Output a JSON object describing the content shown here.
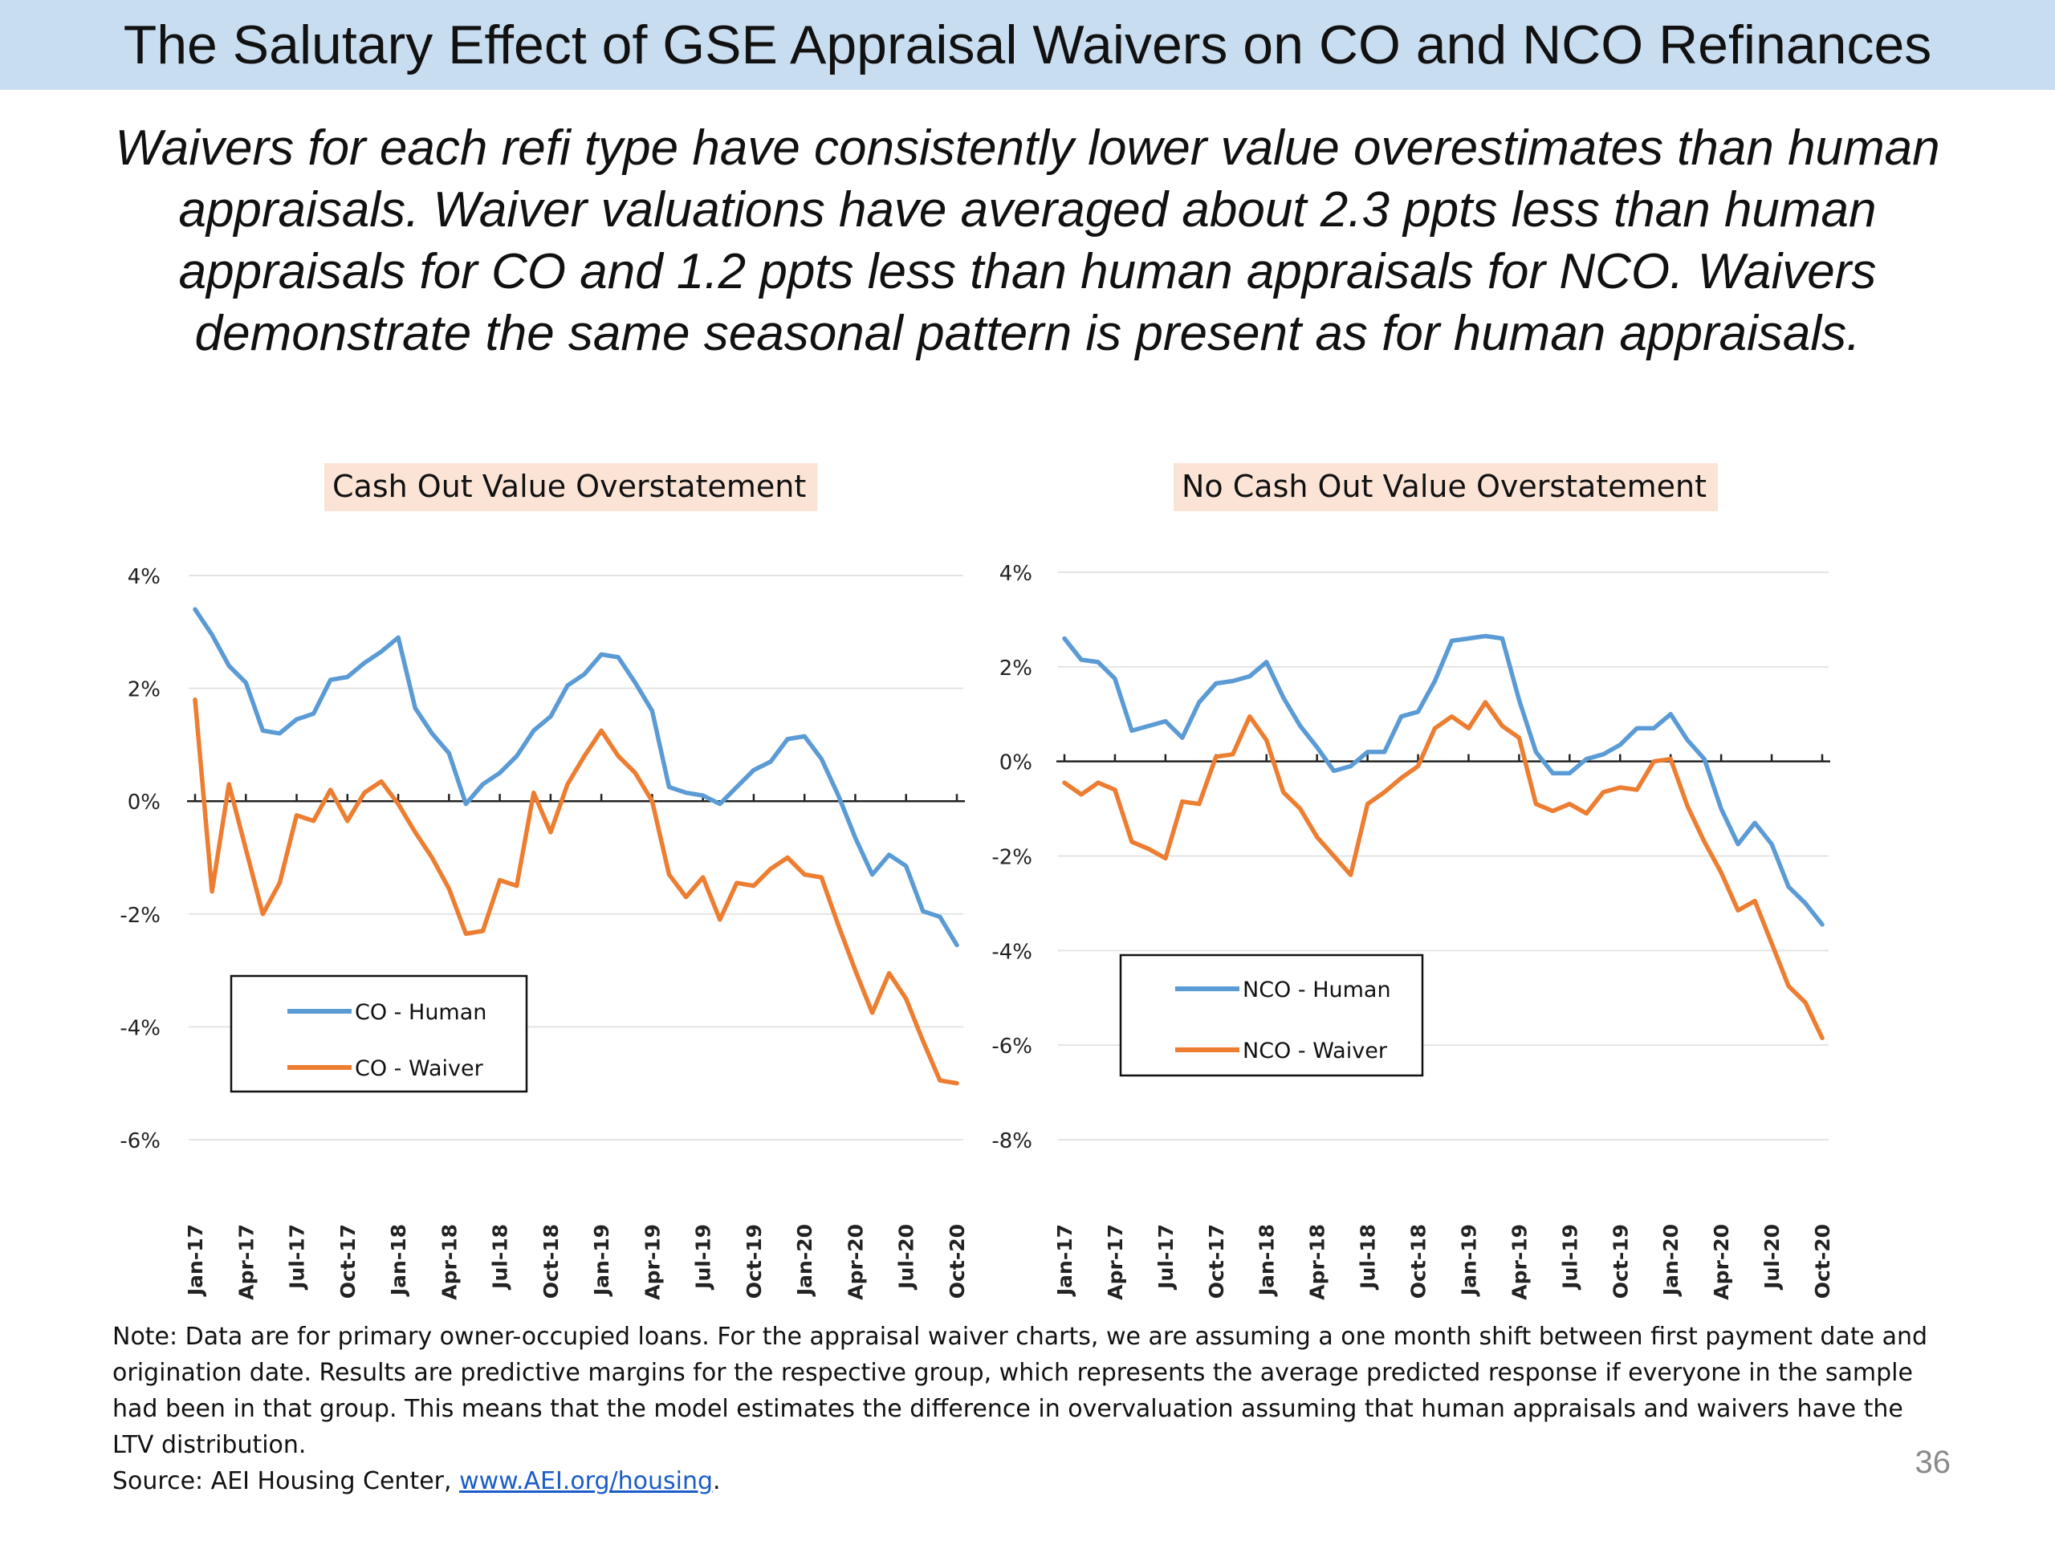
{
  "slide": {
    "title": "The Salutary Effect of GSE Appraisal Waivers on CO and NCO Refinances",
    "subtitle": "Waivers for each refi type have consistently lower value overestimates than human appraisals. Waiver valuations have averaged about 2.3 ppts less than human appraisals for CO and 1.2 ppts less  than human appraisals for NCO. Waivers demonstrate the same seasonal pattern is present as for human appraisals.",
    "note_text": "Note: Data are for primary owner-occupied loans. For the appraisal waiver charts, we are assuming a one month shift between first payment date and origination date. Results are predictive margins for the respective group, which represents the average predicted response if everyone in the sample had been in that group. This means that the model estimates the difference in overvaluation assuming that human appraisals and waivers have the LTV distribution.",
    "source_prefix": "Source: AEI Housing Center, ",
    "source_link": "www.AEI.org/housing",
    "source_suffix": ".",
    "page_number": "36"
  },
  "colors": {
    "title_bar": "#c9ddf0",
    "chart_title_bg": "#fbe4d6",
    "human": "#5b9bd5",
    "waiver": "#ed7d31",
    "link": "#1a5cc8"
  },
  "chart_data": [
    {
      "type": "line",
      "title": "Cash Out Value Overstatement",
      "xlabel": "",
      "ylabel": "",
      "y_unit": "%",
      "ylim": [
        -6,
        4
      ],
      "yticks": [
        -6,
        -4,
        -2,
        0,
        2,
        4
      ],
      "ytick_labels": [
        "-6%",
        "-4%",
        "-2%",
        "0%",
        "2%",
        "4%"
      ],
      "grid": true,
      "legend": "lower-left",
      "x_labels": [
        "Jan-17",
        "Apr-17",
        "Jul-17",
        "Oct-17",
        "Jan-18",
        "Apr-18",
        "Jul-18",
        "Oct-18",
        "Jan-19",
        "Apr-19",
        "Jul-19",
        "Oct-19",
        "Jan-20",
        "Apr-20",
        "Jul-20",
        "Oct-20"
      ],
      "x_label_step": 3,
      "n_points": 46,
      "series": [
        {
          "name": "CO - Human",
          "color": "#5b9bd5",
          "values": [
            3.4,
            2.95,
            2.4,
            2.1,
            1.25,
            1.2,
            1.45,
            1.55,
            2.15,
            2.2,
            2.45,
            2.65,
            2.9,
            1.65,
            1.2,
            0.85,
            -0.05,
            0.3,
            0.5,
            0.8,
            1.25,
            1.5,
            2.05,
            2.25,
            2.6,
            2.55,
            2.1,
            1.6,
            0.25,
            0.15,
            0.1,
            -0.05,
            0.25,
            0.55,
            0.7,
            1.1,
            1.15,
            0.75,
            0.1,
            -0.65,
            -1.3,
            -0.95,
            -1.15,
            -1.95,
            -2.05,
            -2.55
          ]
        },
        {
          "name": "CO - Waiver",
          "color": "#ed7d31",
          "values": [
            1.8,
            -1.6,
            0.3,
            -0.85,
            -2.0,
            -1.45,
            -0.25,
            -0.35,
            0.2,
            -0.35,
            0.15,
            0.35,
            -0.05,
            -0.55,
            -1.0,
            -1.55,
            -2.35,
            -2.3,
            -1.4,
            -1.5,
            0.15,
            -0.55,
            0.3,
            0.8,
            1.25,
            0.8,
            0.5,
            0.0,
            -1.3,
            -1.7,
            -1.35,
            -2.1,
            -1.45,
            -1.5,
            -1.2,
            -1.0,
            -1.3,
            -1.35,
            -2.2,
            -3.0,
            -3.75,
            -3.05,
            -3.5,
            -4.25,
            -4.95,
            -5.0
          ]
        }
      ]
    },
    {
      "type": "line",
      "title": "No Cash Out Value Overstatement",
      "xlabel": "",
      "ylabel": "",
      "y_unit": "%",
      "ylim": [
        -8,
        4
      ],
      "yticks": [
        -8,
        -6,
        -4,
        -2,
        0,
        2,
        4
      ],
      "ytick_labels": [
        "-8%",
        "-6%",
        "-4%",
        "-2%",
        "0%",
        "2%",
        "4%"
      ],
      "grid": true,
      "legend": "lower-left",
      "x_labels": [
        "Jan-17",
        "Apr-17",
        "Jul-17",
        "Oct-17",
        "Jan-18",
        "Apr-18",
        "Jul-18",
        "Oct-18",
        "Jan-19",
        "Apr-19",
        "Jul-19",
        "Oct-19",
        "Jan-20",
        "Apr-20",
        "Jul-20",
        "Oct-20"
      ],
      "x_label_step": 3,
      "n_points": 46,
      "series": [
        {
          "name": "NCO - Human",
          "color": "#5b9bd5",
          "values": [
            2.6,
            2.15,
            2.1,
            1.75,
            0.65,
            0.75,
            0.85,
            0.5,
            1.25,
            1.65,
            1.7,
            1.8,
            2.1,
            1.35,
            0.75,
            0.3,
            -0.2,
            -0.1,
            0.2,
            0.2,
            0.95,
            1.05,
            1.7,
            2.55,
            2.6,
            2.65,
            2.6,
            1.3,
            0.2,
            -0.25,
            -0.25,
            0.05,
            0.15,
            0.35,
            0.7,
            0.7,
            1.0,
            0.45,
            0.05,
            -1.0,
            -1.75,
            -1.3,
            -1.75,
            -2.65,
            -3.0,
            -3.45
          ]
        },
        {
          "name": "NCO - Waiver",
          "color": "#ed7d31",
          "values": [
            -0.45,
            -0.7,
            -0.45,
            -0.6,
            -1.7,
            -1.85,
            -2.05,
            -0.85,
            -0.9,
            0.1,
            0.15,
            0.95,
            0.45,
            -0.65,
            -1.0,
            -1.6,
            -2.0,
            -2.4,
            -0.9,
            -0.65,
            -0.35,
            -0.1,
            0.7,
            0.95,
            0.7,
            1.25,
            0.75,
            0.5,
            -0.9,
            -1.05,
            -0.9,
            -1.1,
            -0.65,
            -0.55,
            -0.6,
            0.0,
            0.05,
            -0.95,
            -1.7,
            -2.35,
            -3.15,
            -2.95,
            -3.85,
            -4.75,
            -5.1,
            -5.85
          ]
        }
      ]
    }
  ]
}
